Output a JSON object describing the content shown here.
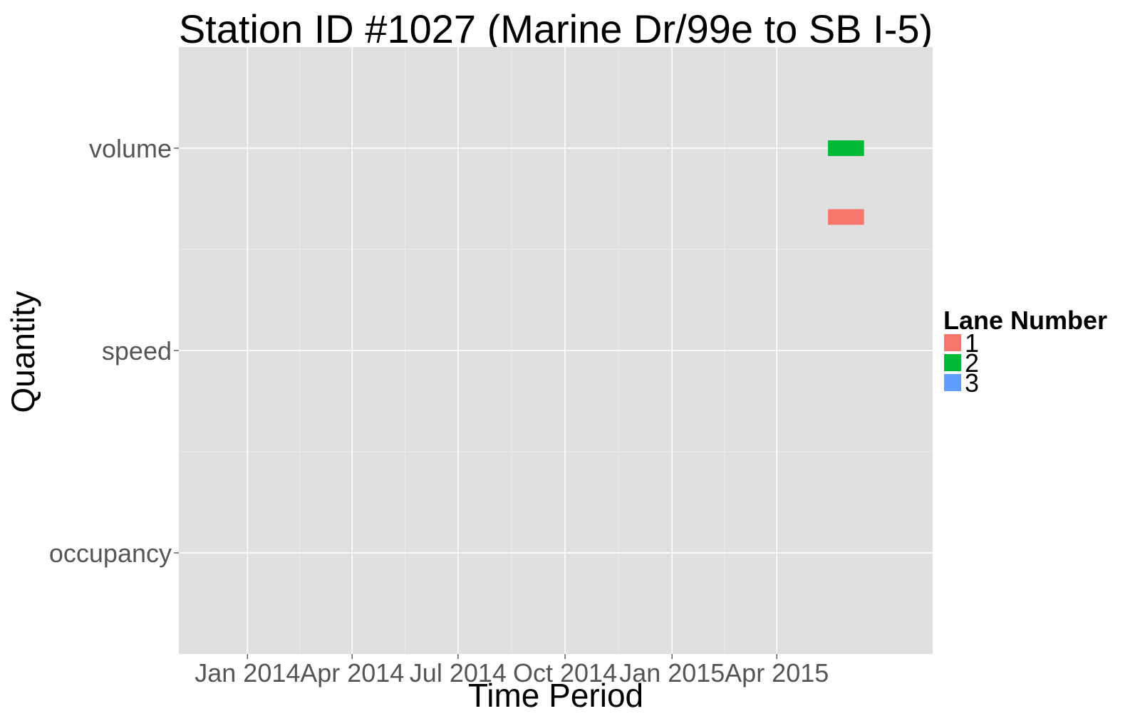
{
  "chart_data": {
    "type": "bar",
    "title": "Station ID #1027 (Marine Dr/99e to SB I-5)",
    "xlabel": "Time Period",
    "ylabel": "Quantity",
    "x_type": "date",
    "x_ticks": [
      "2014-01-01",
      "2014-04-01",
      "2014-07-01",
      "2014-10-01",
      "2015-01-01",
      "2015-04-01"
    ],
    "x_tick_labels": [
      "Jan 2014",
      "Apr 2014",
      "Jul 2014",
      "Oct 2014",
      "Jan 2015",
      "Apr 2015"
    ],
    "xlim": [
      "2013-11-03",
      "2015-08-13"
    ],
    "categories": [
      "occupancy",
      "speed",
      "volume"
    ],
    "grid": true,
    "legend": {
      "title": "Lane Number",
      "placement": "right",
      "entries": [
        {
          "label": "1",
          "color": "#F8766D"
        },
        {
          "label": "2",
          "color": "#00BA38"
        },
        {
          "label": "3",
          "color": "#619CFF"
        }
      ]
    },
    "segments": [
      {
        "quantity": "volume",
        "lane": "2",
        "start": "2015-05-15",
        "end": "2015-06-15"
      },
      {
        "quantity": "volume",
        "lane": "1",
        "start": "2015-05-15",
        "end": "2015-06-15"
      }
    ],
    "lane_order": [
      "1",
      "2",
      "3"
    ],
    "colors": {
      "panel": "#E0E0E0",
      "grid_major": "#FFFFFF",
      "grid_minor": "#EBEBEB",
      "tick": "#555555"
    }
  }
}
